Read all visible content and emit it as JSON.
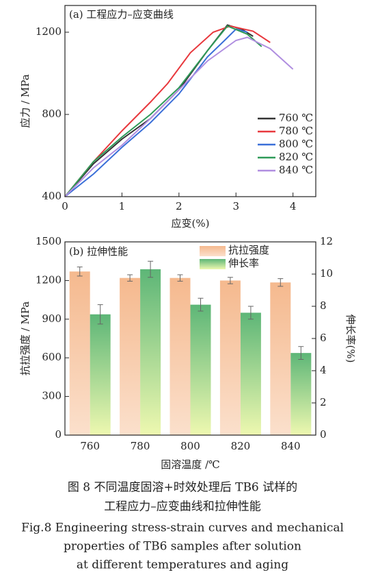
{
  "chart_data": [
    {
      "type": "line",
      "title": "(a) 工程应力–应变曲线",
      "x_label": "应变(%)",
      "y_label": "应力 / MPa",
      "xlim": [
        0,
        4.4
      ],
      "ylim": [
        400,
        1330
      ],
      "xticks": [
        0,
        1,
        2,
        3,
        4
      ],
      "yticks": [
        400,
        800,
        1200
      ],
      "series": [
        {
          "name": "760 ℃",
          "color": "#333333",
          "x": [
            0,
            0.5,
            1,
            1.5,
            2,
            2.5,
            2.85,
            3.1,
            3.3
          ],
          "values": [
            400,
            560,
            680,
            780,
            920,
            1110,
            1235,
            1215,
            1180
          ]
        },
        {
          "name": "780 ℃",
          "color": "#e8383d",
          "x": [
            0,
            0.5,
            1,
            1.5,
            1.8,
            2.2,
            2.6,
            2.9,
            3.3,
            3.6
          ],
          "values": [
            400,
            570,
            720,
            860,
            950,
            1100,
            1200,
            1230,
            1205,
            1150
          ]
        },
        {
          "name": "800 ℃",
          "color": "#3a6fd8",
          "x": [
            0,
            0.5,
            1,
            1.5,
            2,
            2.5,
            2.8,
            3.0,
            3.2
          ],
          "values": [
            400,
            510,
            640,
            760,
            900,
            1080,
            1160,
            1215,
            1200
          ]
        },
        {
          "name": "820 ℃",
          "color": "#2e9a58",
          "x": [
            0,
            0.5,
            1,
            1.5,
            2,
            2.5,
            2.85,
            3.2,
            3.45
          ],
          "values": [
            400,
            570,
            690,
            800,
            930,
            1110,
            1230,
            1190,
            1130
          ]
        },
        {
          "name": "840 ℃",
          "color": "#b08ee0",
          "x": [
            0,
            0.5,
            1,
            1.5,
            2,
            2.5,
            3.0,
            3.2,
            3.6,
            4.0
          ],
          "values": [
            400,
            540,
            650,
            780,
            920,
            1060,
            1160,
            1175,
            1120,
            1020
          ]
        }
      ]
    },
    {
      "type": "bar",
      "title": "(b) 拉伸性能",
      "x_label": "固溶温度 /℃",
      "y_label": "抗拉强度 / MPa",
      "y2_label": "伸长率(%)",
      "categories": [
        "760",
        "780",
        "800",
        "820",
        "840"
      ],
      "ylim": [
        0,
        1500
      ],
      "yticks": [
        0,
        300,
        600,
        900,
        1200,
        1500
      ],
      "y2lim": [
        0,
        12
      ],
      "y2ticks": [
        0,
        2,
        4,
        6,
        8,
        10,
        12
      ],
      "series": [
        {
          "name": "抗拉强度",
          "color": "#f5b98e",
          "values": [
            1270,
            1220,
            1220,
            1200,
            1185
          ],
          "errors": [
            35,
            25,
            25,
            25,
            30
          ]
        },
        {
          "name": "伸长率",
          "color": "#5db677",
          "axis": "y2",
          "values": [
            7.5,
            10.3,
            8.1,
            7.6,
            5.1
          ],
          "errors": [
            0.6,
            0.5,
            0.4,
            0.4,
            0.4
          ]
        }
      ]
    }
  ],
  "caption": {
    "zh": [
      "图 8  不同温度固溶+时效处理后 TB6 试样的",
      "工程应力–应变曲线和拉伸性能"
    ],
    "en": [
      "Fig.8  Engineering stress-strain curves and mechanical",
      "properties of TB6 samples after solution",
      "at different temperatures and aging"
    ]
  }
}
